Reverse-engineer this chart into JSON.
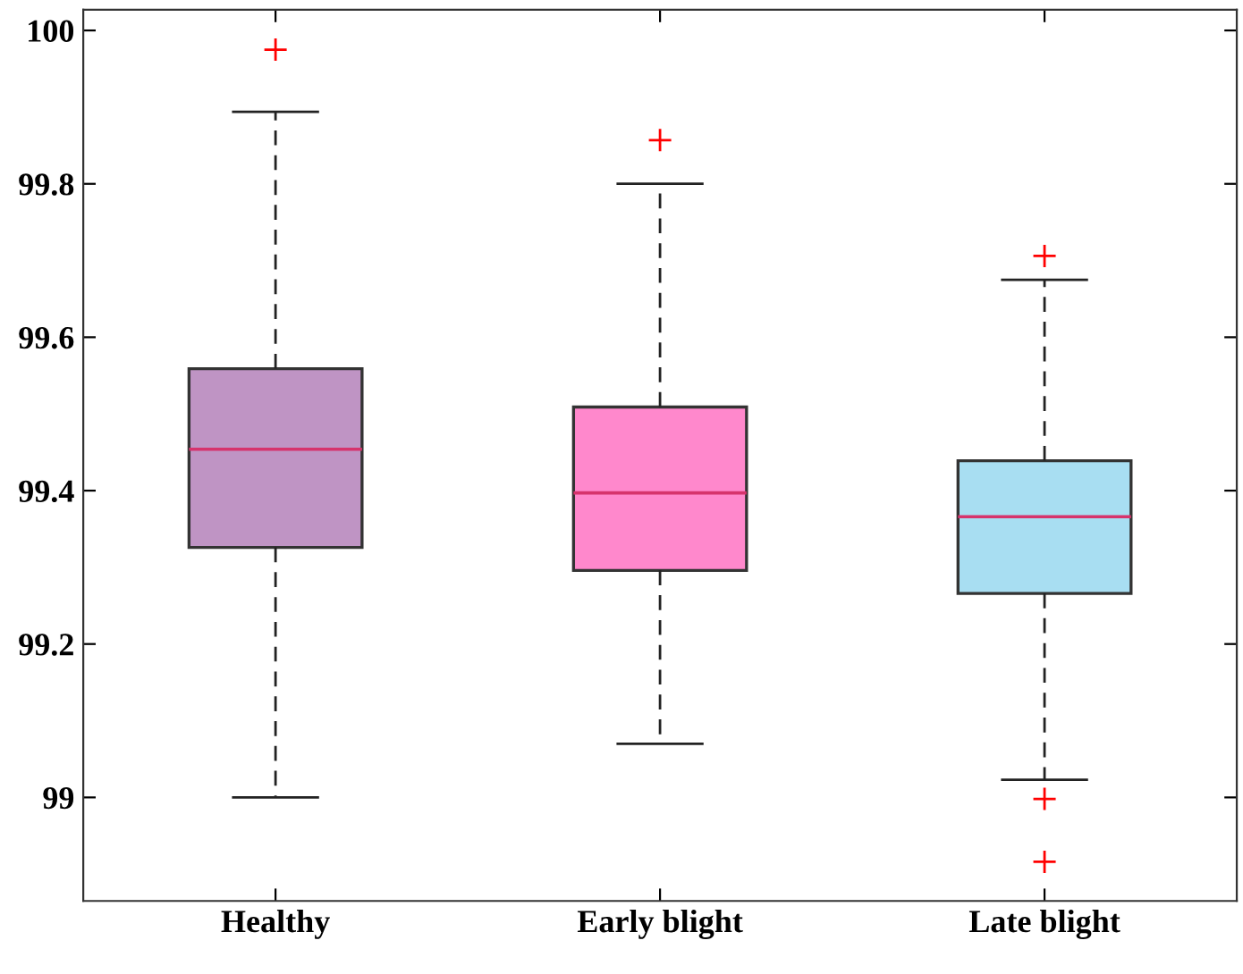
{
  "chart_data": {
    "type": "box",
    "categories": [
      "Healthy",
      "Early blight",
      "Late blight"
    ],
    "colors": [
      "#bf94c4",
      "#ff88cc",
      "#a8def2"
    ],
    "boxes": [
      {
        "low": 99.0,
        "q1": 99.326,
        "median": 99.454,
        "q3": 99.559,
        "high": 99.894,
        "outliers": [
          99.975
        ]
      },
      {
        "low": 99.07,
        "q1": 99.296,
        "median": 99.397,
        "q3": 99.509,
        "high": 99.8,
        "outliers": [
          99.857
        ]
      },
      {
        "low": 99.023,
        "q1": 99.266,
        "median": 99.366,
        "q3": 99.439,
        "high": 99.675,
        "outliers": [
          99.706,
          98.998,
          98.916
        ]
      }
    ],
    "ylim": [
      98.865,
      100.027
    ],
    "yticks": [
      99,
      99.2,
      99.4,
      99.6,
      99.8,
      100
    ],
    "grid": false,
    "marker": "cross",
    "line_style": "dashed"
  }
}
